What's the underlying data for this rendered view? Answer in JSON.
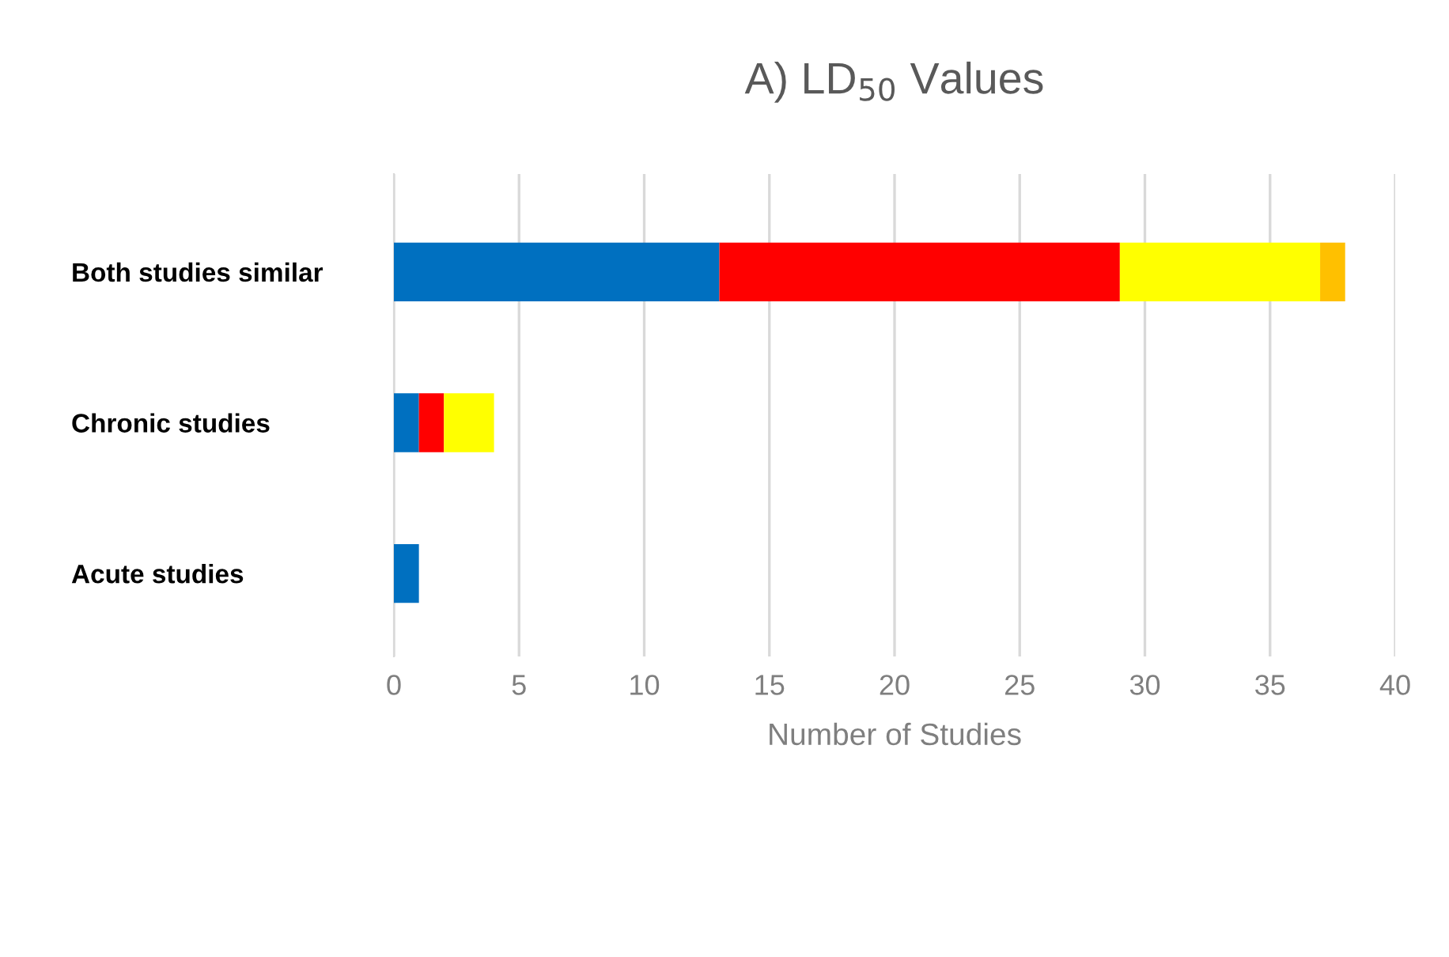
{
  "chart_data": {
    "type": "bar",
    "orientation": "horizontal",
    "stacked": true,
    "title": "A) LD$_{50}$ Values",
    "xlabel": "Number of Studies",
    "categories": [
      "Both studies similar",
      "Chronic studies",
      "Acute studies"
    ],
    "series": [
      {
        "color": "#0070c0",
        "values": [
          13,
          1,
          1
        ]
      },
      {
        "color": "#ff0000",
        "values": [
          16,
          1,
          0
        ]
      },
      {
        "color": "#ffff00",
        "values": [
          8,
          2,
          0
        ]
      },
      {
        "color": "#ffc000",
        "values": [
          1,
          0,
          0
        ]
      }
    ],
    "xlim": [
      0,
      40
    ],
    "xticks": [
      0,
      5,
      10,
      15,
      20,
      25,
      30,
      35,
      40
    ],
    "grid": "x",
    "legend": false
  }
}
